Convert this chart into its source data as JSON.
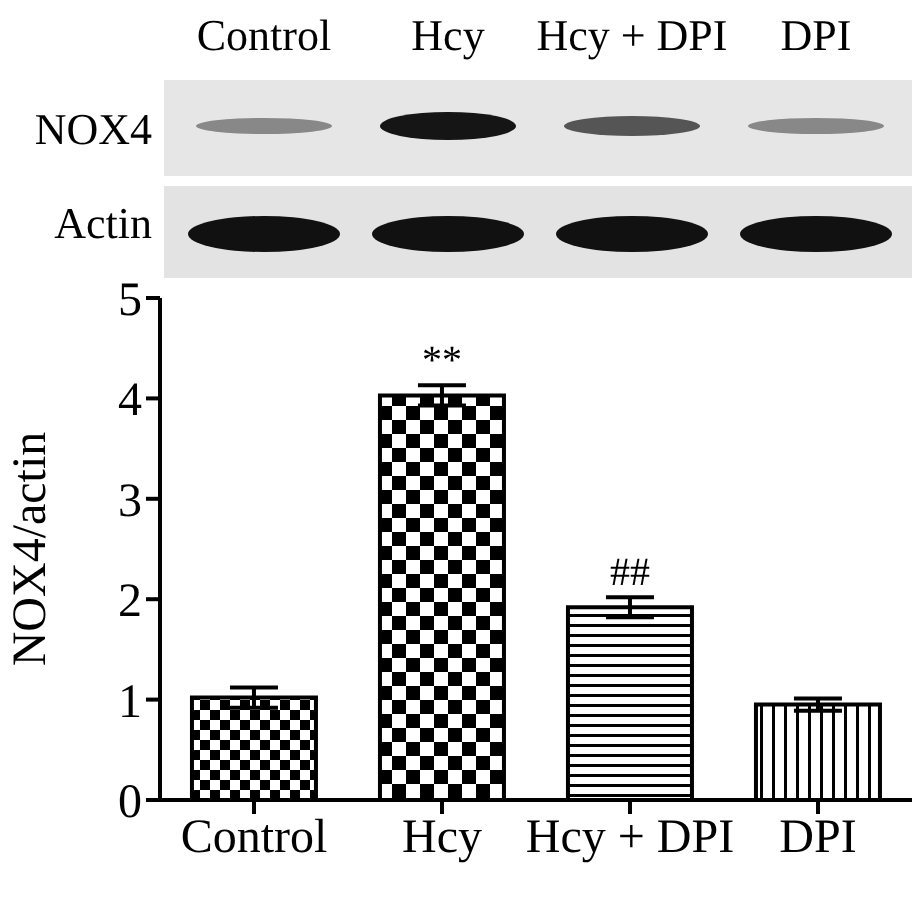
{
  "chart_data": {
    "type": "bar",
    "ylabel": "NOX4/actin",
    "categories": [
      "Control",
      "Hcy",
      "Hcy + DPI",
      "DPI"
    ],
    "values": [
      1.02,
      4.03,
      1.92,
      0.95
    ],
    "errors": [
      0.1,
      0.1,
      0.1,
      0.06
    ],
    "colors": [
      "#000000",
      "#000000",
      "#000000",
      "#000000"
    ],
    "ylim": [
      0,
      5
    ],
    "yticks": [
      0,
      1,
      2,
      3,
      4,
      5
    ],
    "grid": false,
    "legend": false,
    "annotations": [
      "Control",
      "Hcy",
      "Hcy + DPI",
      "DPI",
      "NOX4",
      "Actin",
      {
        "text": "**",
        "x": "Hcy",
        "y": 4.13
      },
      {
        "text": "##",
        "x": "Hcy + DPI",
        "y": 2.02
      }
    ]
  }
}
